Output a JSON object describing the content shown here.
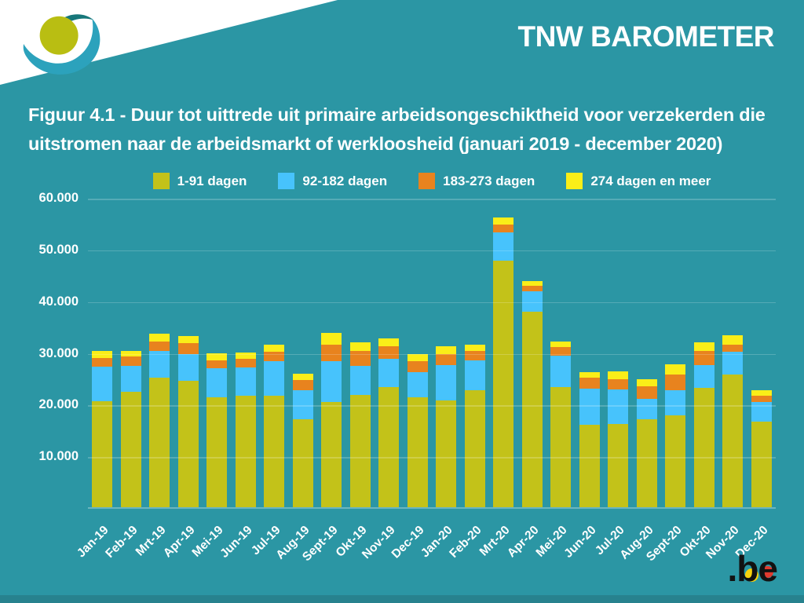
{
  "header": {
    "title": "TNW BAROMETER"
  },
  "figure": {
    "title_line1": "Figuur 4.1 - Duur tot uittrede uit primaire arbeidsongeschiktheid voor verzekerden die",
    "title_line2": "uitstromen naar de arbeidsmarkt of werkloosheid (januari 2019 - december 2020)"
  },
  "footer": {
    "brand": ".be"
  },
  "colors": {
    "background": "#2B96A4",
    "footer_strip": "#27828E",
    "text": "#FFFFFF",
    "series_1_91": "#C3C219",
    "series_92_182": "#47C3FC",
    "series_183_273": "#E8831E",
    "series_274_plus": "#FAEE18",
    "logo_circle": "#B9BE12",
    "logo_swoosh": "#2CA2BC",
    "logo_accent": "#17777A"
  },
  "chart_data": {
    "type": "bar",
    "stacked": true,
    "title": "",
    "xlabel": "",
    "ylabel": "",
    "ylim": [
      0,
      60000
    ],
    "grid": true,
    "legend_position": "top",
    "y_ticks": [
      "10.000",
      "20.000",
      "30.000",
      "40.000",
      "50.000",
      "60.000"
    ],
    "categories": [
      "Jan-19",
      "Feb-19",
      "Mrt-19",
      "Apr-19",
      "Mei-19",
      "Jun-19",
      "Jul-19",
      "Aug-19",
      "Sept-19",
      "Okt-19",
      "Nov-19",
      "Dec-19",
      "Jan-20",
      "Feb-20",
      "Mrt-20",
      "Apr-20",
      "Mei-20",
      "Jun-20",
      "Jul-20",
      "Aug-20",
      "Sept-20",
      "Okt-20",
      "Nov-20",
      "Dec-20"
    ],
    "series": [
      {
        "name": "1-91 dagen",
        "color": "#C3C219",
        "values": [
          20500,
          22400,
          25000,
          24500,
          21300,
          21500,
          21600,
          17000,
          20400,
          21700,
          23300,
          21200,
          20600,
          22700,
          47700,
          37800,
          23200,
          16000,
          16100,
          17000,
          17700,
          23100,
          25700,
          16600
        ]
      },
      {
        "name": "92-182 dagen",
        "color": "#47C3FC",
        "values": [
          6700,
          5000,
          5300,
          5200,
          5600,
          5600,
          6600,
          5700,
          7800,
          5600,
          5400,
          4900,
          6900,
          5700,
          5400,
          3900,
          6100,
          7000,
          6700,
          4000,
          5000,
          4400,
          4400,
          3800
        ]
      },
      {
        "name": "183-273 dagen",
        "color": "#E8831E",
        "values": [
          1700,
          1700,
          1700,
          2100,
          1500,
          1600,
          1900,
          1900,
          3300,
          2900,
          2400,
          2100,
          2200,
          1900,
          1600,
          1200,
          1700,
          2000,
          2000,
          2400,
          3000,
          2800,
          1400,
          1100
        ]
      },
      {
        "name": "274 dagen en meer",
        "color": "#FAEE18",
        "values": [
          1400,
          1200,
          1500,
          1300,
          1400,
          1200,
          1300,
          1200,
          2200,
          1700,
          1600,
          1500,
          1500,
          1200,
          1400,
          900,
          1000,
          1100,
          1500,
          1300,
          1900,
          1600,
          1700,
          1200
        ]
      }
    ]
  }
}
